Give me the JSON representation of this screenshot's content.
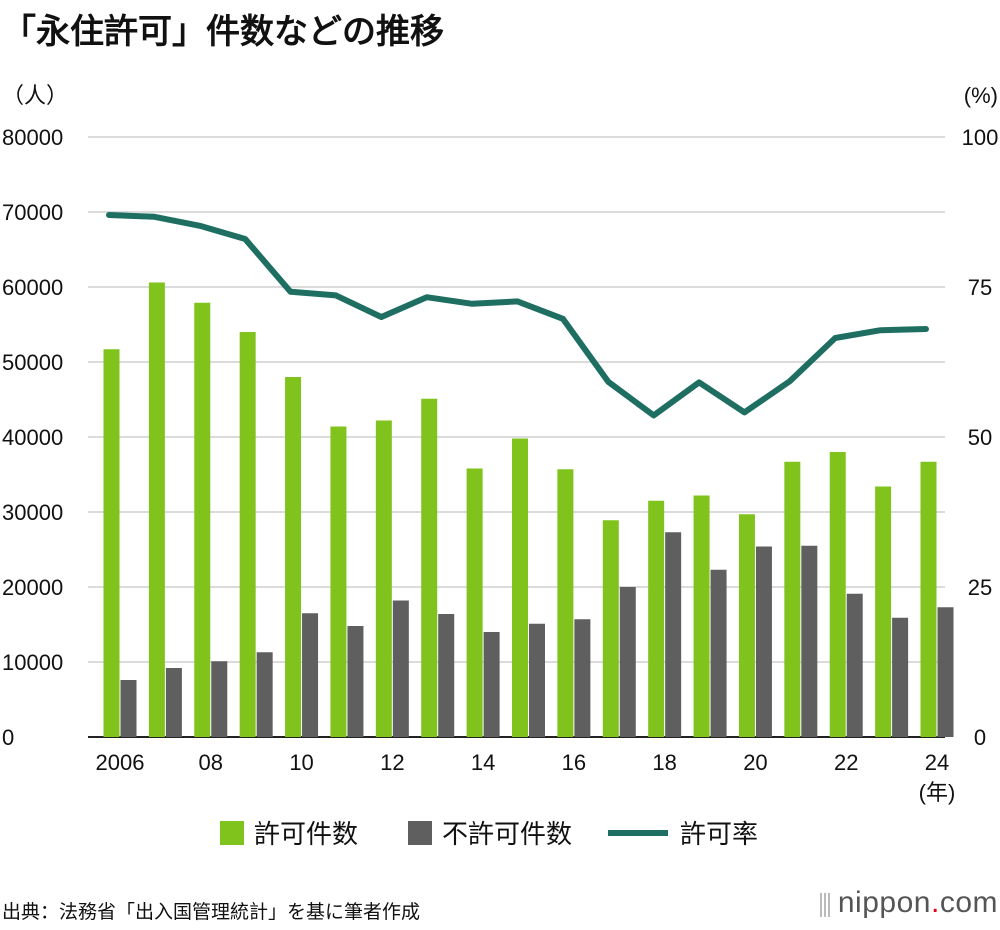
{
  "title": "「永住許可」件数などの推移",
  "source": "出典：法務省「出入国管理統計」を基に筆者作成",
  "brand": {
    "name": "nippon",
    "dot": ".",
    "tld": "com"
  },
  "chart_data": {
    "type": "bar+line",
    "title": "「永住許可」件数などの推移",
    "left_axis": {
      "unit": "（人）",
      "ylim": [
        0,
        80000
      ],
      "ticks": [
        "0",
        "10000",
        "20000",
        "30000",
        "40000",
        "50000",
        "60000",
        "70000",
        "80000"
      ]
    },
    "right_axis": {
      "unit": "(%)",
      "ylim": [
        0,
        100
      ],
      "ticks": [
        "0",
        "25",
        "50",
        "75",
        "100"
      ]
    },
    "x_unit": "(年)",
    "years": [
      2006,
      2007,
      2008,
      2009,
      2010,
      2011,
      2012,
      2013,
      2014,
      2015,
      2016,
      2017,
      2018,
      2019,
      2020,
      2021,
      2022,
      2023,
      2024
    ],
    "x_tick_labels": [
      "2006",
      "",
      "08",
      "",
      "10",
      "",
      "12",
      "",
      "14",
      "",
      "16",
      "",
      "18",
      "",
      "20",
      "",
      "22",
      "",
      "24"
    ],
    "series": [
      {
        "name": "許可件数",
        "type": "bar",
        "axis": "left",
        "color": "#7fc31c",
        "values": [
          51700,
          60600,
          57900,
          54000,
          48000,
          41400,
          42200,
          45100,
          35800,
          39800,
          35700,
          28900,
          31500,
          32200,
          29700,
          36700,
          38000,
          33400,
          36700
        ]
      },
      {
        "name": "不許可件数",
        "type": "bar",
        "axis": "left",
        "color": "#5f5f5f",
        "values": [
          7600,
          9200,
          10100,
          11300,
          16500,
          14800,
          18200,
          16400,
          14000,
          15100,
          15700,
          20000,
          27300,
          22300,
          25400,
          25500,
          19100,
          15900,
          17300
        ]
      },
      {
        "name": "許可率",
        "type": "line",
        "axis": "right",
        "color": "#1e6f62",
        "values": [
          87.0,
          86.7,
          85.2,
          83.0,
          74.2,
          73.6,
          70.0,
          73.3,
          72.2,
          72.6,
          69.7,
          59.2,
          53.6,
          59.1,
          54.1,
          59.3,
          66.5,
          67.8,
          68.0
        ]
      }
    ],
    "grid": true,
    "legend_position": "bottom"
  }
}
